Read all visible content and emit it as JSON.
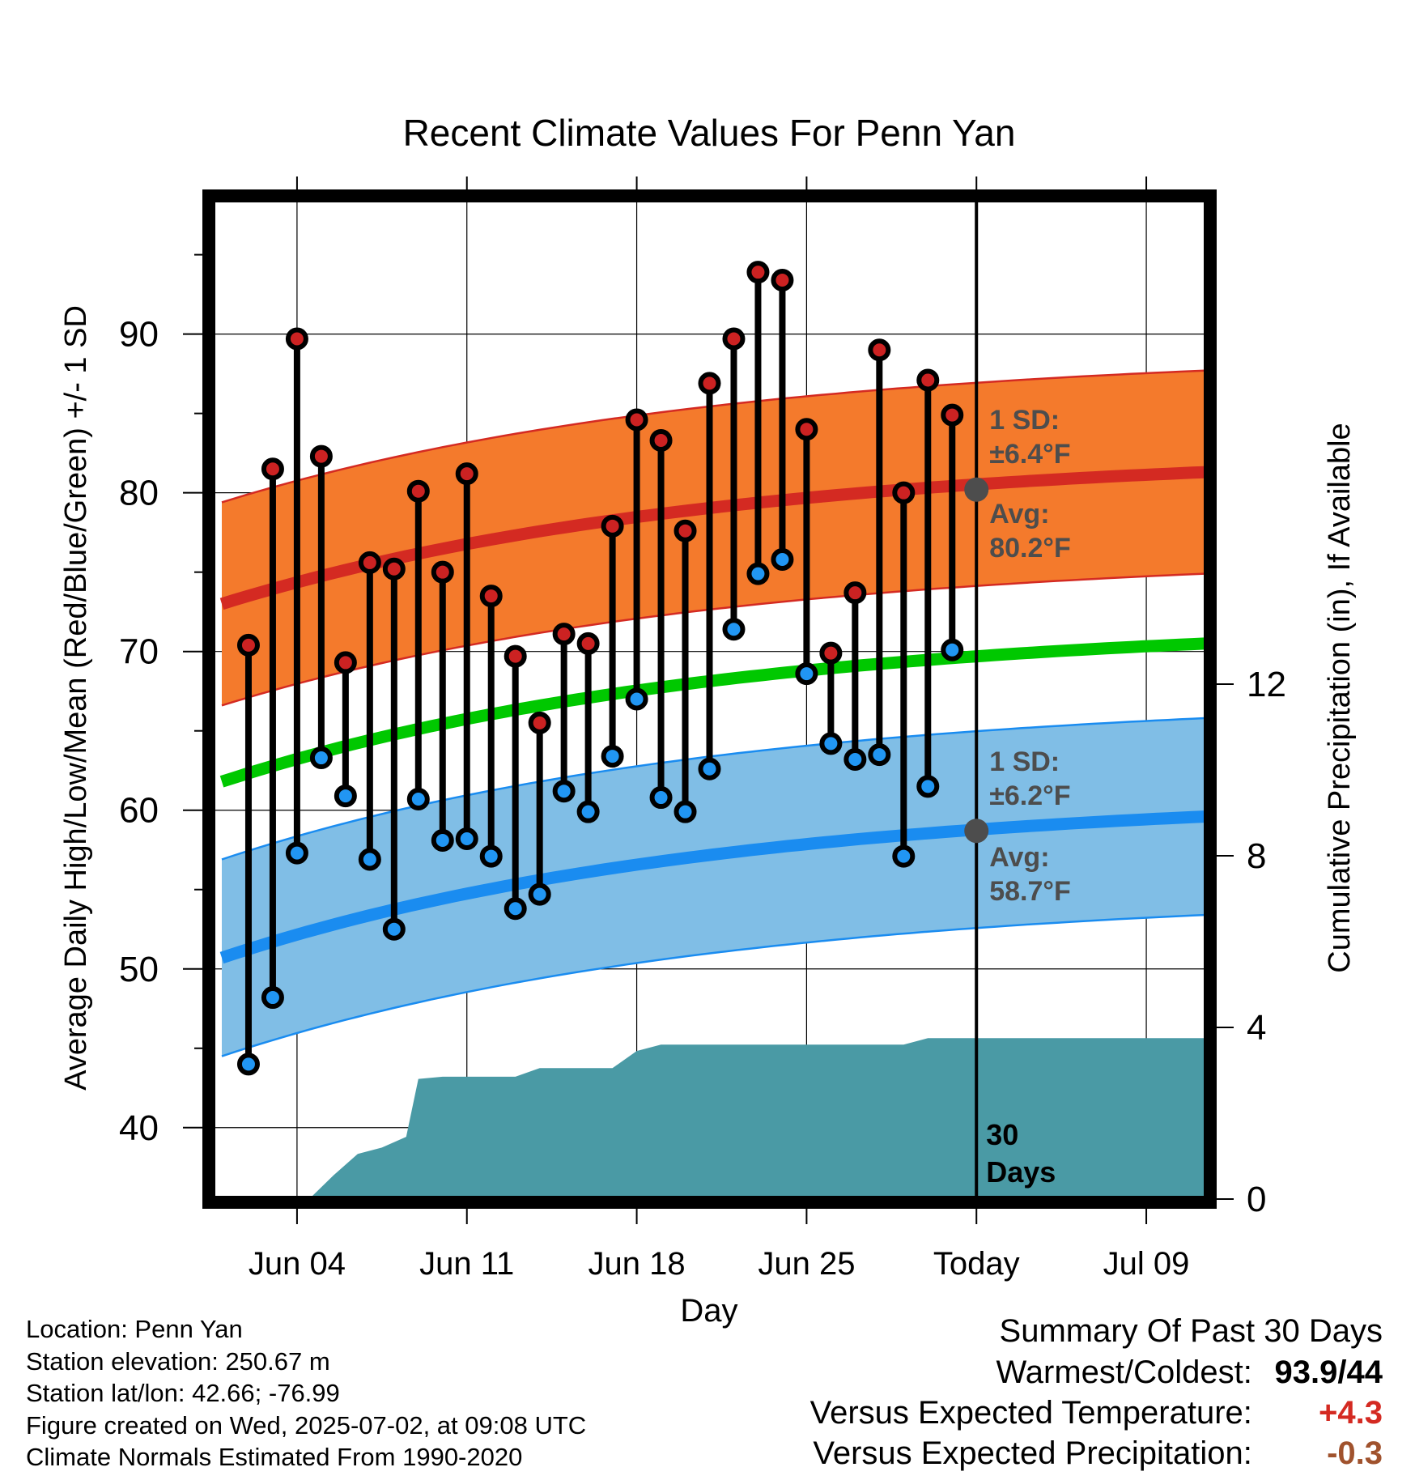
{
  "chart_data": {
    "type": "line",
    "title": "Recent Climate Values For Penn Yan",
    "xlabel": "Day",
    "ylabel": "Average Daily High/Low/Mean (Red/Blue/Green) +/- 1 SD",
    "y2label": "Cumulative Precipitation (in), If Available",
    "ylim": [
      35.5,
      98.5
    ],
    "y_ticks": [
      40,
      50,
      60,
      70,
      80,
      90
    ],
    "y2lim": [
      0,
      23.3
    ],
    "y2_ticks": [
      0,
      4,
      8,
      12
    ],
    "xlim": [
      0.5,
      41.5
    ],
    "x_ticks": [
      {
        "day": 4,
        "label": "Jun 04"
      },
      {
        "day": 11,
        "label": "Jun 11"
      },
      {
        "day": 18,
        "label": "Jun 18"
      },
      {
        "day": 25,
        "label": "Jun 25"
      },
      {
        "day": 32,
        "label": "Today"
      },
      {
        "day": 39,
        "label": "Jul 09"
      }
    ],
    "grid": true,
    "today_day": 32,
    "today_label": [
      "30",
      "Days"
    ],
    "observations": {
      "days": [
        2,
        3,
        4,
        5,
        6,
        7,
        8,
        9,
        10,
        11,
        12,
        13,
        14,
        15,
        16,
        17,
        18,
        19,
        20,
        21,
        22,
        23,
        24,
        25,
        26,
        27,
        28,
        29,
        30,
        31
      ],
      "high": [
        70.4,
        81.5,
        89.7,
        82.3,
        69.3,
        75.6,
        75.2,
        80.1,
        75.0,
        81.2,
        73.5,
        69.7,
        65.5,
        71.1,
        70.5,
        77.9,
        84.6,
        83.3,
        77.6,
        86.9,
        89.7,
        93.9,
        93.4,
        84.0,
        69.9,
        73.7,
        89.0,
        80.0,
        87.1,
        84.9
      ],
      "low": [
        44.0,
        48.2,
        57.3,
        63.3,
        60.9,
        56.9,
        52.5,
        60.7,
        58.1,
        58.2,
        57.1,
        53.8,
        54.7,
        61.2,
        59.9,
        63.4,
        67.0,
        60.8,
        59.9,
        62.6,
        71.4,
        74.9,
        75.8,
        68.6,
        64.2,
        63.2,
        63.5,
        57.1,
        61.5,
        70.1
      ]
    },
    "normals": {
      "start_day": 0.9,
      "high_mean_start": 73.0,
      "high_mean_end": 81.3,
      "high_sd": 6.4,
      "low_mean_start": 50.7,
      "low_mean_end": 59.6,
      "low_sd": 6.2,
      "mean_start": 61.8,
      "mean_end": 70.5
    },
    "precipitation": {
      "days": [
        4.5,
        5.5,
        6.5,
        7.5,
        8.5,
        9.0,
        10.0,
        11.0,
        12.0,
        13.0,
        14.0,
        15.0,
        16.0,
        17.0,
        18.0,
        19.0,
        20.0,
        24.0,
        29.0,
        30.0,
        41.4
      ],
      "cumulative": [
        0,
        0.55,
        1.05,
        1.2,
        1.45,
        2.8,
        2.85,
        2.85,
        2.85,
        2.85,
        3.05,
        3.05,
        3.05,
        3.05,
        3.45,
        3.6,
        3.6,
        3.6,
        3.6,
        3.75,
        3.75
      ]
    },
    "annotations": {
      "high_sd_label": [
        "1 SD:",
        "±6.4°F"
      ],
      "high_avg_label": [
        "Avg:",
        "80.2°F"
      ],
      "low_sd_label": [
        "1 SD:",
        "±6.2°F"
      ],
      "low_avg_label": [
        "Avg:",
        "58.7°F"
      ],
      "today_high_avg": 80.2,
      "today_low_avg": 58.7
    },
    "colors": {
      "high_band": "#f47a2c",
      "high_line": "#d42a22",
      "low_band": "#80bee6",
      "low_line": "#1a8cf0",
      "mean_line": "#00c800",
      "precip": "#4a9aa5",
      "high_marker": "#cc2222",
      "low_marker": "#2196f3",
      "annotation_text": "#4d4d4d"
    }
  },
  "footer": {
    "location": "Location: Penn Yan",
    "elevation": "Station elevation: 250.67 m",
    "latlon": "Station lat/lon: 42.66; -76.99",
    "created": "Figure created on Wed, 2025-07-02, at 09:08 UTC",
    "normals": "Climate Normals Estimated From 1990-2020"
  },
  "summary": {
    "title": "Summary Of Past 30 Days",
    "warm_cold_label": "Warmest/Coldest:",
    "warm_cold_value": "93.9/44",
    "temp_label": "Versus Expected Temperature:",
    "temp_value": "+4.3",
    "temp_color": "#d42a22",
    "precip_label": "Versus Expected Precipitation:",
    "precip_value": "-0.3",
    "precip_color": "#a0522d"
  }
}
